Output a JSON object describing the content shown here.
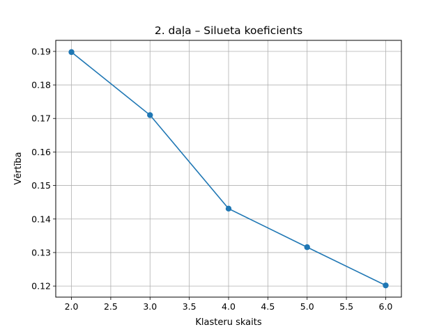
{
  "chart_data": {
    "type": "line",
    "title": "2. daļa – Silueta koeficients",
    "xlabel": "Klasteru skaits",
    "ylabel": "Vērtība",
    "x": [
      2,
      3,
      4,
      5,
      6
    ],
    "series": [
      {
        "values": [
          0.1898,
          0.171,
          0.1431,
          0.1316,
          0.1202
        ],
        "color": "#1f77b4",
        "marker": "circle"
      }
    ],
    "xlim": [
      1.8,
      6.2
    ],
    "ylim": [
      0.1167,
      0.1933
    ],
    "xticks": [
      2.0,
      2.5,
      3.0,
      3.5,
      4.0,
      4.5,
      5.0,
      5.5,
      6.0
    ],
    "yticks": [
      0.12,
      0.13,
      0.14,
      0.15,
      0.16,
      0.17,
      0.18,
      0.19
    ],
    "xtick_labels": [
      "2.0",
      "2.5",
      "3.0",
      "3.5",
      "4.0",
      "4.5",
      "5.0",
      "5.5",
      "6.0"
    ],
    "ytick_labels": [
      "0.12",
      "0.13",
      "0.14",
      "0.15",
      "0.16",
      "0.17",
      "0.18",
      "0.19"
    ],
    "grid": true
  }
}
